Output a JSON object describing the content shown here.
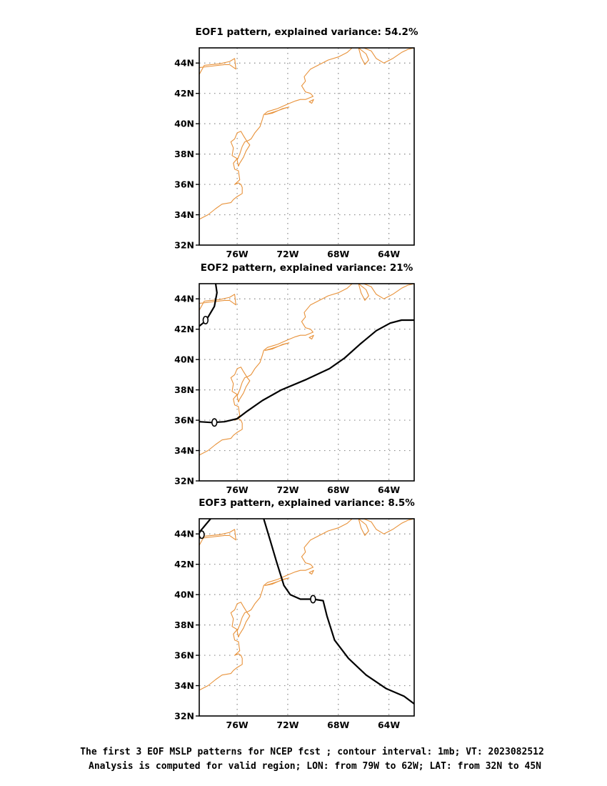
{
  "colors": {
    "coastline": "#e8923a",
    "contour": "#000000",
    "grid": "#888888"
  },
  "lon_range": [
    -79,
    -62
  ],
  "lat_range": [
    32,
    45
  ],
  "x_ticks": [
    {
      "lon": -76,
      "label": "76W"
    },
    {
      "lon": -72,
      "label": "72W"
    },
    {
      "lon": -68,
      "label": "68W"
    },
    {
      "lon": -64,
      "label": "64W"
    }
  ],
  "y_ticks": [
    {
      "lat": 32,
      "label": "32N"
    },
    {
      "lat": 34,
      "label": "34N"
    },
    {
      "lat": 36,
      "label": "36N"
    },
    {
      "lat": 38,
      "label": "38N"
    },
    {
      "lat": 40,
      "label": "40N"
    },
    {
      "lat": 42,
      "label": "42N"
    },
    {
      "lat": 44,
      "label": "44N"
    }
  ],
  "coastlines": [
    [
      [
        -79,
        43.7
      ],
      [
        -78,
        43.8
      ],
      [
        -77,
        43.9
      ],
      [
        -76.6,
        43.9
      ],
      [
        -76.1,
        43.6
      ],
      [
        -76.2,
        44.3
      ],
      [
        -76.6,
        44.1
      ],
      [
        -77.4,
        43.95
      ],
      [
        -78.6,
        43.85
      ],
      [
        -79,
        43.25
      ]
    ],
    [
      [
        -79,
        33.7
      ],
      [
        -78.3,
        34.0
      ],
      [
        -77.7,
        34.4
      ],
      [
        -77.2,
        34.7
      ],
      [
        -76.5,
        34.8
      ],
      [
        -76.3,
        35.0
      ],
      [
        -76.0,
        35.2
      ],
      [
        -75.6,
        35.4
      ],
      [
        -75.6,
        35.8
      ],
      [
        -75.7,
        36.0
      ],
      [
        -75.9,
        36.1
      ],
      [
        -76.2,
        36.0
      ],
      [
        -75.8,
        36.3
      ],
      [
        -75.9,
        36.9
      ],
      [
        -76.2,
        37.0
      ],
      [
        -76.3,
        37.4
      ],
      [
        -76.0,
        37.7
      ],
      [
        -76.4,
        37.9
      ],
      [
        -76.3,
        38.4
      ],
      [
        -76.5,
        38.8
      ],
      [
        -76.2,
        39.0
      ],
      [
        -76.0,
        39.4
      ],
      [
        -75.7,
        39.5
      ],
      [
        -75.5,
        39.2
      ],
      [
        -75.2,
        38.8
      ],
      [
        -75.0,
        38.6
      ],
      [
        -75.3,
        38.2
      ],
      [
        -75.5,
        37.8
      ],
      [
        -75.8,
        37.4
      ],
      [
        -75.9,
        37.2
      ],
      [
        -76.0,
        37.6
      ],
      [
        -75.8,
        38.0
      ],
      [
        -75.6,
        38.5
      ],
      [
        -75.4,
        38.8
      ],
      [
        -75.1,
        38.9
      ],
      [
        -74.9,
        39.0
      ],
      [
        -74.6,
        39.4
      ],
      [
        -74.2,
        39.8
      ],
      [
        -74.0,
        40.3
      ],
      [
        -73.9,
        40.6
      ],
      [
        -73.6,
        40.8
      ],
      [
        -72.8,
        41.0
      ],
      [
        -72.0,
        41.3
      ],
      [
        -71.4,
        41.5
      ],
      [
        -71.0,
        41.6
      ],
      [
        -70.6,
        41.6
      ],
      [
        -70.3,
        41.7
      ],
      [
        -70.0,
        41.8
      ],
      [
        -70.2,
        42.0
      ],
      [
        -70.6,
        42.1
      ],
      [
        -70.9,
        42.5
      ],
      [
        -70.6,
        42.8
      ],
      [
        -70.7,
        43.1
      ],
      [
        -70.2,
        43.6
      ],
      [
        -69.5,
        43.9
      ],
      [
        -68.8,
        44.2
      ],
      [
        -68.0,
        44.4
      ],
      [
        -67.3,
        44.7
      ],
      [
        -66.9,
        45.0
      ]
    ],
    [
      [
        -73.8,
        40.6
      ],
      [
        -73.0,
        40.8
      ],
      [
        -72.3,
        41.0
      ],
      [
        -71.9,
        41.1
      ],
      [
        -72.4,
        41.0
      ],
      [
        -73.2,
        40.7
      ],
      [
        -73.8,
        40.6
      ]
    ],
    [
      [
        -70.1,
        41.35
      ],
      [
        -69.95,
        41.6
      ],
      [
        -70.3,
        41.45
      ],
      [
        -70.1,
        41.35
      ]
    ],
    [
      [
        -66.0,
        45.0
      ],
      [
        -65.4,
        44.8
      ],
      [
        -65.0,
        44.3
      ],
      [
        -64.4,
        44.0
      ],
      [
        -63.7,
        44.3
      ],
      [
        -63.0,
        44.7
      ],
      [
        -62.5,
        44.9
      ],
      [
        -62,
        45.0
      ]
    ],
    [
      [
        -66.4,
        45.0
      ],
      [
        -65.8,
        44.6
      ],
      [
        -65.6,
        44.2
      ],
      [
        -65.9,
        43.9
      ],
      [
        -66.2,
        44.4
      ],
      [
        -66.3,
        44.7
      ],
      [
        -66.4,
        45.0
      ]
    ]
  ],
  "panels": [
    {
      "title": "EOF1 pattern, explained variance: 54.2%",
      "contours": [],
      "contour_labels": []
    },
    {
      "title": "EOF2 pattern, explained variance: 21%",
      "contours": [
        [
          [
            -77.7,
            45
          ],
          [
            -77.6,
            44.4
          ],
          [
            -77.8,
            43.5
          ],
          [
            -78.3,
            42.8
          ],
          [
            -78.7,
            42.4
          ],
          [
            -79,
            42.2
          ]
        ],
        [
          [
            -79,
            35.9
          ],
          [
            -78,
            35.85
          ],
          [
            -77,
            35.9
          ],
          [
            -76,
            36.1
          ],
          [
            -75.2,
            36.6
          ],
          [
            -74,
            37.3
          ],
          [
            -72.5,
            38.0
          ],
          [
            -70.5,
            38.7
          ],
          [
            -68.7,
            39.4
          ],
          [
            -67.5,
            40.1
          ],
          [
            -66.3,
            41.0
          ],
          [
            -65.0,
            41.9
          ],
          [
            -63.9,
            42.4
          ],
          [
            -63,
            42.6
          ],
          [
            -62,
            42.6
          ]
        ]
      ],
      "contour_labels": [
        {
          "lon": -78.5,
          "lat": 42.6,
          "text": "0"
        },
        {
          "lon": -77.8,
          "lat": 35.85,
          "text": "0"
        }
      ]
    },
    {
      "title": "EOF3 pattern, explained variance: 8.5%",
      "contours": [
        [
          [
            -79,
            44.1
          ],
          [
            -78.6,
            44.5
          ],
          [
            -78.1,
            45
          ]
        ],
        [
          [
            -73.9,
            45
          ],
          [
            -73.4,
            43.6
          ],
          [
            -72.9,
            42.2
          ],
          [
            -72.3,
            40.6
          ],
          [
            -71.8,
            40.0
          ],
          [
            -71.0,
            39.7
          ],
          [
            -70.0,
            39.7
          ],
          [
            -69.2,
            39.6
          ],
          [
            -68.9,
            38.6
          ],
          [
            -68.3,
            37.0
          ],
          [
            -67.2,
            35.8
          ],
          [
            -65.8,
            34.7
          ],
          [
            -64.2,
            33.8
          ],
          [
            -62.8,
            33.3
          ],
          [
            -62,
            32.8
          ]
        ]
      ],
      "contour_labels": [
        {
          "lon": -78.8,
          "lat": 43.95,
          "text": "0"
        },
        {
          "lon": -70.0,
          "lat": 39.7,
          "text": "0"
        }
      ]
    }
  ],
  "caption": [
    "The first 3 EOF MSLP patterns for NCEP fcst ; contour interval: 1mb; VT: 2023082512",
    "Analysis is computed for valid region; LON: from 79W to 62W; LAT: from 32N to 45N"
  ]
}
